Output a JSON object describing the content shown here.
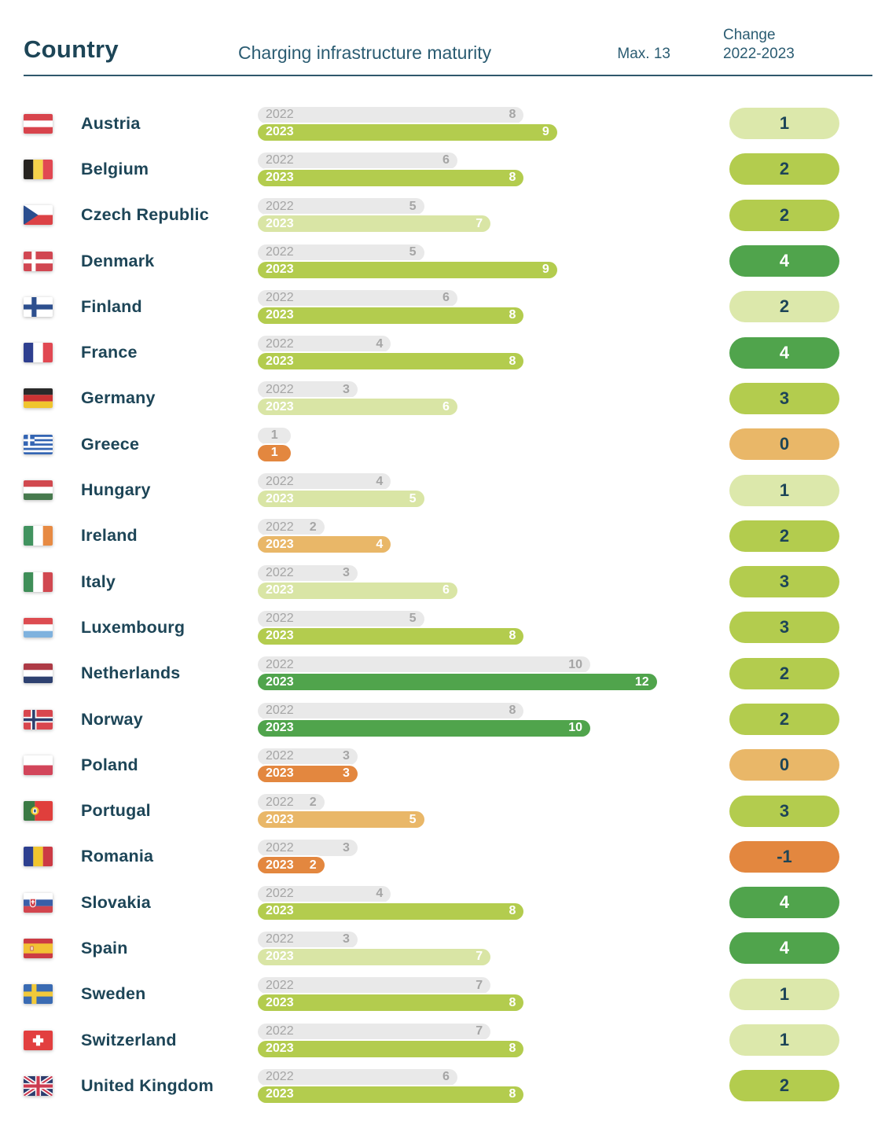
{
  "header": {
    "country_col": "Country",
    "maturity_col": "Charging infrastructure maturity",
    "max_label": "Max. 13",
    "change_col": "Change\n2022-2023"
  },
  "labels": {
    "year_2022": "2022",
    "year_2023": "2023"
  },
  "colors": {
    "navy_text": "#1d4557",
    "header_teal": "#2b5c72",
    "grey_bar": "#e9e9e9",
    "grey_bar_text": "#a5a5a5",
    "yellow_green": "#b3cc4e",
    "pale_green": "#d9e5a5",
    "dark_green": "#50a44c",
    "light_orange": "#e9b768",
    "dark_orange": "#e3873f",
    "badge_pale_green": "#dce8ab"
  },
  "chart_data": {
    "type": "bar",
    "title": "Charging infrastructure maturity",
    "subtitle": "Max. 13",
    "xlim": [
      0,
      13
    ],
    "legend_position": "in-bar",
    "grid": false,
    "categories": [
      "Austria",
      "Belgium",
      "Czech Republic",
      "Denmark",
      "Finland",
      "France",
      "Germany",
      "Greece",
      "Hungary",
      "Ireland",
      "Italy",
      "Luxembourg",
      "Netherlands",
      "Norway",
      "Poland",
      "Portugal",
      "Romania",
      "Slovakia",
      "Spain",
      "Sweden",
      "Switzerland",
      "United Kingdom"
    ],
    "series": [
      {
        "name": "2022",
        "values": [
          8,
          6,
          5,
          5,
          6,
          4,
          3,
          1,
          4,
          2,
          3,
          5,
          10,
          8,
          3,
          2,
          3,
          4,
          3,
          7,
          7,
          6
        ]
      },
      {
        "name": "2023",
        "values": [
          9,
          8,
          7,
          9,
          8,
          8,
          6,
          1,
          5,
          4,
          6,
          8,
          12,
          10,
          3,
          5,
          2,
          8,
          7,
          8,
          8,
          8
        ]
      }
    ],
    "change_2022_2023": [
      1,
      2,
      2,
      4,
      2,
      4,
      3,
      0,
      1,
      2,
      3,
      3,
      2,
      2,
      0,
      3,
      -1,
      4,
      4,
      1,
      1,
      2
    ]
  },
  "rows": [
    {
      "country": "Austria",
      "flag": "flag-austria",
      "y2022": 8,
      "y2023": 9,
      "bar_color": "yellow-green",
      "change": "1",
      "badge_color": "pale-green"
    },
    {
      "country": "Belgium",
      "flag": "flag-belgium",
      "y2022": 6,
      "y2023": 8,
      "bar_color": "yellow-green",
      "change": "2",
      "badge_color": "yellow-green"
    },
    {
      "country": "Czech Republic",
      "flag": "flag-czech-republic",
      "y2022": 5,
      "y2023": 7,
      "bar_color": "pale-green",
      "change": "2",
      "badge_color": "yellow-green"
    },
    {
      "country": "Denmark",
      "flag": "flag-denmark",
      "y2022": 5,
      "y2023": 9,
      "bar_color": "yellow-green",
      "change": "4",
      "badge_color": "dark-green"
    },
    {
      "country": "Finland",
      "flag": "flag-finland",
      "y2022": 6,
      "y2023": 8,
      "bar_color": "yellow-green",
      "change": "2",
      "badge_color": "pale-green"
    },
    {
      "country": "France",
      "flag": "flag-france",
      "y2022": 4,
      "y2023": 8,
      "bar_color": "yellow-green",
      "change": "4",
      "badge_color": "dark-green"
    },
    {
      "country": "Germany",
      "flag": "flag-germany",
      "y2022": 3,
      "y2023": 6,
      "bar_color": "pale-green",
      "change": "3",
      "badge_color": "yellow-green"
    },
    {
      "country": "Greece",
      "flag": "flag-greece",
      "y2022": 1,
      "y2023": 1,
      "bar_color": "dark-orange",
      "change": "0",
      "badge_color": "light-orange"
    },
    {
      "country": "Hungary",
      "flag": "flag-hungary",
      "y2022": 4,
      "y2023": 5,
      "bar_color": "pale-green",
      "change": "1",
      "badge_color": "pale-green"
    },
    {
      "country": "Ireland",
      "flag": "flag-ireland",
      "y2022": 2,
      "y2023": 4,
      "bar_color": "light-orange",
      "change": "2",
      "badge_color": "yellow-green"
    },
    {
      "country": "Italy",
      "flag": "flag-italy",
      "y2022": 3,
      "y2023": 6,
      "bar_color": "pale-green",
      "change": "3",
      "badge_color": "yellow-green"
    },
    {
      "country": "Luxembourg",
      "flag": "flag-luxembourg",
      "y2022": 5,
      "y2023": 8,
      "bar_color": "yellow-green",
      "change": "3",
      "badge_color": "yellow-green"
    },
    {
      "country": "Netherlands",
      "flag": "flag-netherlands",
      "y2022": 10,
      "y2023": 12,
      "bar_color": "dark-green",
      "change": "2",
      "badge_color": "yellow-green"
    },
    {
      "country": "Norway",
      "flag": "flag-norway",
      "y2022": 8,
      "y2023": 10,
      "bar_color": "dark-green",
      "change": "2",
      "badge_color": "yellow-green"
    },
    {
      "country": "Poland",
      "flag": "flag-poland",
      "y2022": 3,
      "y2023": 3,
      "bar_color": "dark-orange",
      "change": "0",
      "badge_color": "light-orange"
    },
    {
      "country": "Portugal",
      "flag": "flag-portugal",
      "y2022": 2,
      "y2023": 5,
      "bar_color": "light-orange",
      "change": "3",
      "badge_color": "yellow-green"
    },
    {
      "country": "Romania",
      "flag": "flag-romania",
      "y2022": 3,
      "y2023": 2,
      "bar_color": "dark-orange",
      "change": "-1",
      "badge_color": "dark-orange"
    },
    {
      "country": "Slovakia",
      "flag": "flag-slovakia",
      "y2022": 4,
      "y2023": 8,
      "bar_color": "yellow-green",
      "change": "4",
      "badge_color": "dark-green"
    },
    {
      "country": "Spain",
      "flag": "flag-spain",
      "y2022": 3,
      "y2023": 7,
      "bar_color": "pale-green",
      "change": "4",
      "badge_color": "dark-green"
    },
    {
      "country": "Sweden",
      "flag": "flag-sweden",
      "y2022": 7,
      "y2023": 8,
      "bar_color": "yellow-green",
      "change": "1",
      "badge_color": "pale-green"
    },
    {
      "country": "Switzerland",
      "flag": "flag-switzerland",
      "y2022": 7,
      "y2023": 8,
      "bar_color": "yellow-green",
      "change": "1",
      "badge_color": "pale-green"
    },
    {
      "country": "United Kingdom",
      "flag": "flag-united-kingdom",
      "y2022": 6,
      "y2023": 8,
      "bar_color": "yellow-green",
      "change": "2",
      "badge_color": "yellow-green"
    }
  ]
}
